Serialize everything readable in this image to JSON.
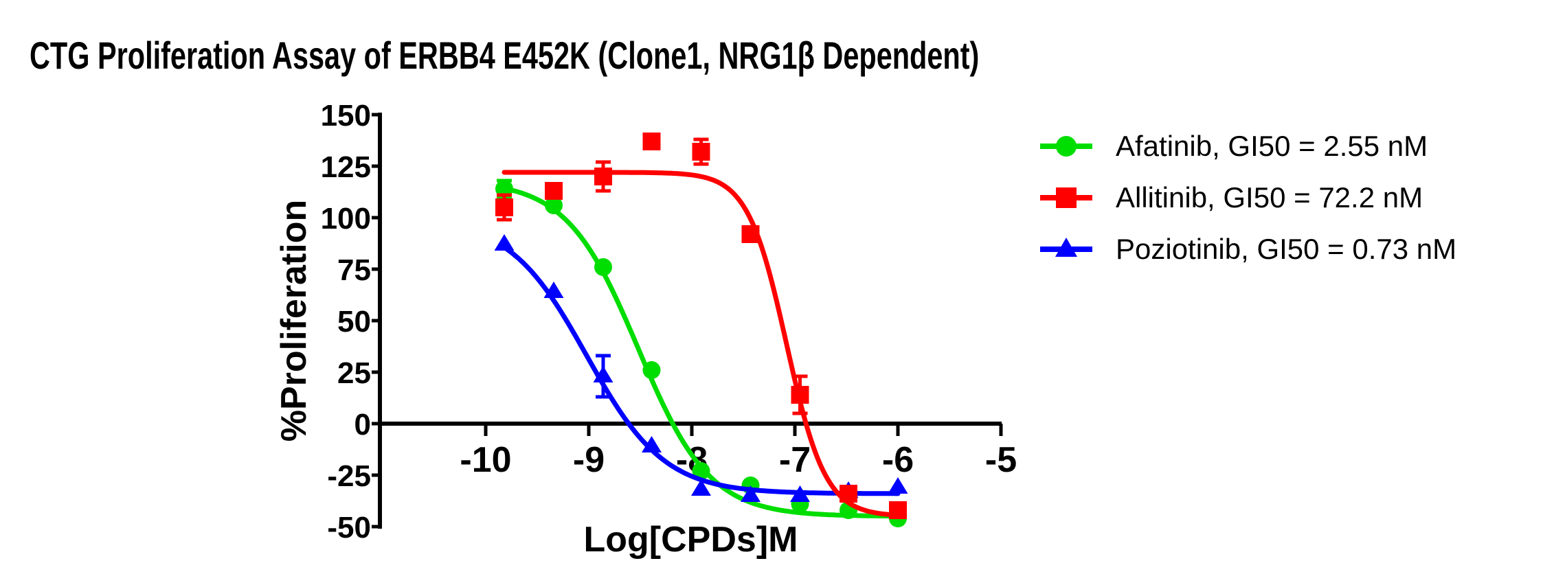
{
  "title": "CTG Proliferation Assay of ERBB4 E452K (Clone1, NRG1β Dependent)",
  "legend": {
    "entries": [
      {
        "label": "Afatinib, GI50 = 2.55 nM",
        "marker": "circle",
        "color": "#00DD00"
      },
      {
        "label": "Allitinib, GI50 = 72.2 nM",
        "marker": "square",
        "color": "#FF0000"
      },
      {
        "label": "Poziotinib, GI50 = 0.73 nM",
        "marker": "triangle",
        "color": "#0000FF"
      }
    ]
  },
  "chart_data": {
    "type": "scatter",
    "title": "CTG Proliferation Assay of ERBB4 E452K (Clone1, NRG1β Dependent)",
    "xlabel": "Log[CPDs]M",
    "ylabel": "%Proliferation",
    "xlim": [
      -11.0,
      -5
    ],
    "ylim": [
      -50,
      150
    ],
    "x_ticks": [
      -10,
      -9,
      -8,
      -7,
      -6,
      -5
    ],
    "y_ticks": [
      150,
      125,
      100,
      75,
      50,
      25,
      0,
      -25,
      -50
    ],
    "grid": false,
    "legend_position": "right",
    "x": [
      -9.82,
      -9.34,
      -8.86,
      -8.39,
      -7.91,
      -7.43,
      -6.95,
      -6.48,
      -6.0
    ],
    "series": [
      {
        "name": "Afatinib",
        "gi50": "2.55 nM",
        "marker": "circle",
        "color": "#00DD00",
        "values": [
          114,
          106,
          76,
          26,
          -23,
          -30,
          -39,
          -42,
          -46
        ],
        "errors": [
          4,
          0,
          0,
          0,
          0,
          0,
          0,
          0,
          0
        ],
        "fit": {
          "top": 118,
          "bottom": -45,
          "loggi50": -8.52,
          "hill": 1.25
        }
      },
      {
        "name": "Allitinib",
        "gi50": "72.2 nM",
        "marker": "square",
        "color": "#FF0000",
        "values": [
          105,
          113,
          120,
          137,
          132,
          92,
          14,
          -34,
          -42
        ],
        "errors": [
          6,
          0,
          7,
          0,
          6,
          0,
          9,
          0,
          0
        ],
        "fit": {
          "top": 122,
          "bottom": -45,
          "loggi50": -7.08,
          "hill": 2.3
        }
      },
      {
        "name": "Poziotinib",
        "gi50": "0.73 nM",
        "marker": "triangle",
        "color": "#0000FF",
        "values": [
          87,
          64,
          23,
          -11,
          -32,
          -35,
          -35,
          -33,
          -31
        ],
        "errors": [
          0,
          0,
          10,
          0,
          0,
          0,
          0,
          0,
          0
        ],
        "fit": {
          "top": 100,
          "bottom": -34,
          "loggi50": -9.02,
          "hill": 1.15
        }
      }
    ]
  }
}
